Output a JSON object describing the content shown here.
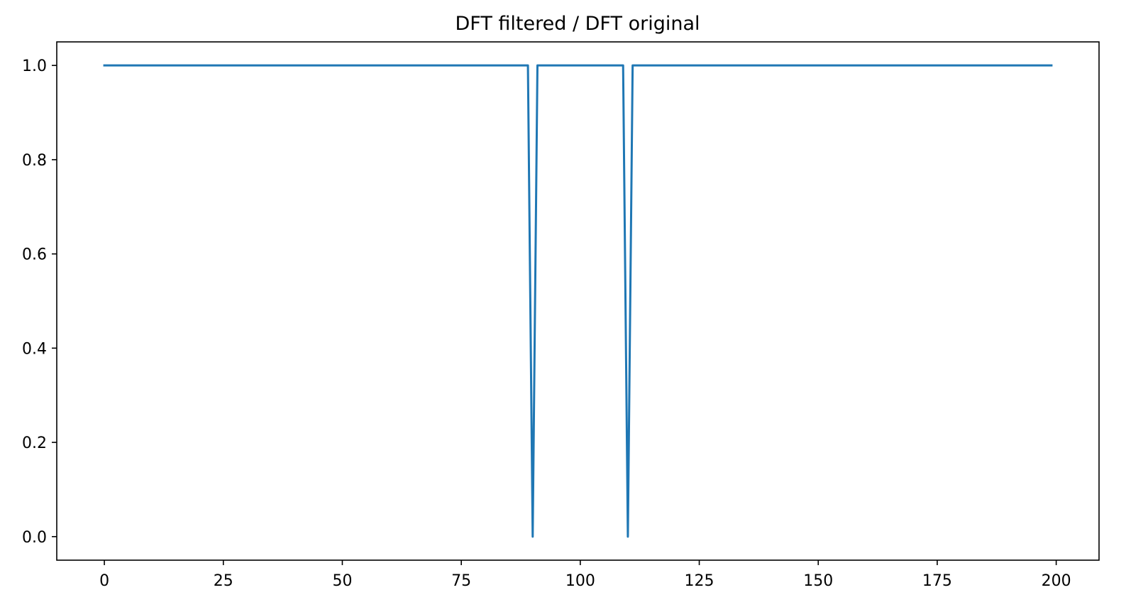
{
  "chart_data": {
    "type": "line",
    "title": "DFT filtered / DFT original",
    "xlabel": "",
    "ylabel": "",
    "xlim": [
      -10,
      209
    ],
    "ylim": [
      -0.05,
      1.05
    ],
    "xticks": [
      0,
      25,
      50,
      75,
      100,
      125,
      150,
      175,
      200
    ],
    "xtick_labels": [
      "0",
      "25",
      "50",
      "75",
      "100",
      "125",
      "150",
      "175",
      "200"
    ],
    "yticks": [
      0.0,
      0.2,
      0.4,
      0.6,
      0.8,
      1.0
    ],
    "ytick_labels": [
      "0.0",
      "0.2",
      "0.4",
      "0.6",
      "0.8",
      "1.0"
    ],
    "grid": false,
    "series": [
      {
        "name": "DFT filtered / DFT original",
        "color": "#1f77b4",
        "x": [
          0,
          89,
          90,
          91,
          109,
          110,
          111,
          199
        ],
        "y": [
          1.0,
          1.0,
          0.0,
          1.0,
          1.0,
          0.0,
          1.0,
          1.0
        ]
      }
    ]
  }
}
